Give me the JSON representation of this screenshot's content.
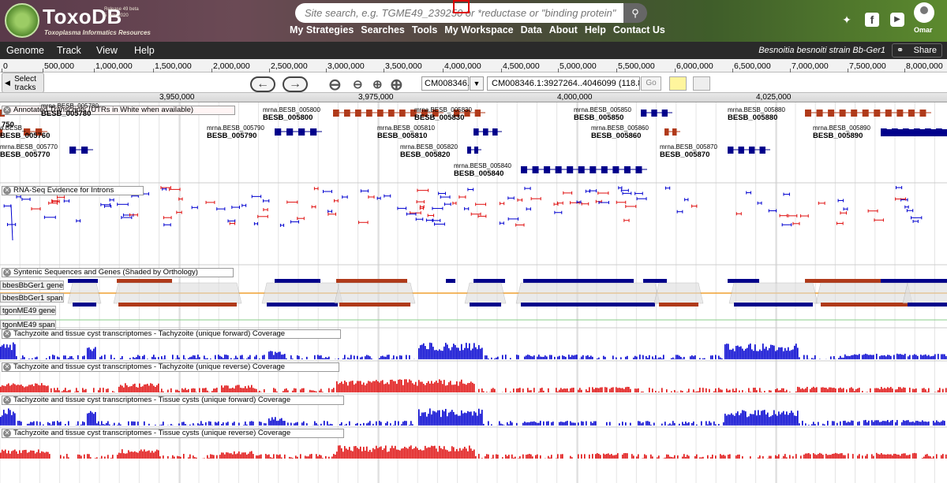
{
  "header": {
    "site_name": "ToxoDB",
    "site_subtitle": "Toxoplasma Informatics Resources",
    "release": "Release 49 beta",
    "release_date": "5 Nov 2020",
    "search_placeholder": "Site search, e.g. TGME49_239250 or *reductase or \"binding protein\"",
    "nav": [
      "My Strategies",
      "Searches",
      "Tools",
      "My Workspace",
      "Data",
      "About",
      "Help",
      "Contact Us"
    ],
    "username": "Omar"
  },
  "jbrowse_menu": {
    "items": [
      "Genome",
      "Track",
      "View",
      "Help"
    ],
    "organism": "Besnoitia besnoiti strain Bb-Ger1",
    "share_label": "Share"
  },
  "overview_ticks": [
    "0",
    "500,000",
    "1,000,000",
    "1,500,000",
    "2,000,000",
    "2,500,000",
    "3,000,000",
    "3,500,000",
    "4,000,000",
    "4,500,000",
    "5,000,000",
    "5,500,000",
    "6,000,000",
    "6,500,000",
    "7,000,000",
    "7,500,000",
    "8,000,000"
  ],
  "navigation": {
    "select_tracks": [
      "Select",
      "tracks"
    ],
    "refseq": "CM008346.1",
    "location": "CM008346.1:3927264..4046099 (118.84 Kb)",
    "go_label": "Go"
  },
  "detail_ticks": [
    "3,950,000",
    "3,975,000",
    "4,000,000",
    "4,025,000"
  ],
  "tracks": {
    "transcripts": "Annotated Transcripts (UTRs in White when available)",
    "rnaseq": "RNA-Seq Evidence for Introns",
    "syntenic": "Syntenic Sequences and Genes (Shaded by Orthology)",
    "syn_sub": [
      "bbesBbGer1 gene",
      "bbesBbGer1 span",
      "tgonME49 gene",
      "tgonME49 span"
    ],
    "cov1": "Tachyzoite and tissue cyst transcriptomes - Tachyzoite (unique forward) Coverage",
    "cov2": "Tachyzoite and tissue cyst transcriptomes - Tachyzoite (unique reverse) Coverage",
    "cov3": "Tachyzoite and tissue cyst transcriptomes - Tissue cysts (unique forward) Coverage",
    "cov4": "Tachyzoite and tissue cyst transcriptomes - Tissue cysts (unique reverse) Coverage"
  },
  "genes": [
    {
      "mrna": "",
      "name": "750",
      "color": "#b03a1a"
    },
    {
      "mrna": "mrna.BESB_005780",
      "name": "BESB_005780",
      "color": "#b03a1a"
    },
    {
      "mrna": "mrna.BESB_005800",
      "name": "BESB_005800",
      "color": "#b03a1a"
    },
    {
      "mrna": "mrna.BESB_005830",
      "name": "BESB_005830",
      "color": "#b03a1a"
    },
    {
      "mrna": "mrna.BESB_005850",
      "name": "BESB_005850",
      "color": "#00008b"
    },
    {
      "mrna": "mrna.BESB_005880",
      "name": "BESB_005880",
      "color": "#b03a1a"
    },
    {
      "mrna": "a.BESB_",
      "name": "BESB_005760",
      "color": "#b03a1a"
    },
    {
      "mrna": "mrna.BESB_005790",
      "name": "BESB_005790",
      "color": "#00008b"
    },
    {
      "mrna": "mrna.BESB_005810",
      "name": "BESB_005810",
      "color": "#b03a1a"
    },
    {
      "mrna": "mrna.BESB_005860",
      "name": "BESB_005860",
      "color": "#b03a1a"
    },
    {
      "mrna": "mrna.BESB_005890",
      "name": "BESB_005890",
      "color": "#00008b"
    },
    {
      "mrna": "mrna.BESB_005770",
      "name": "BESB_005770",
      "color": "#00008b"
    },
    {
      "mrna": "mrna.BESB_005820",
      "name": "BESB_005820",
      "color": "#00008b"
    },
    {
      "mrna": "mrna.BESB_005870",
      "name": "BESB_005870",
      "color": "#00008b"
    },
    {
      "mrna": "mrna.BESB_005840",
      "name": "BESB_005840",
      "color": "#00008b"
    }
  ],
  "colors": {
    "forward": "#0000d0",
    "reverse": "#e01010",
    "gene_red": "#b03a1a",
    "gene_blue": "#00008b",
    "orange": "#f0a030"
  }
}
